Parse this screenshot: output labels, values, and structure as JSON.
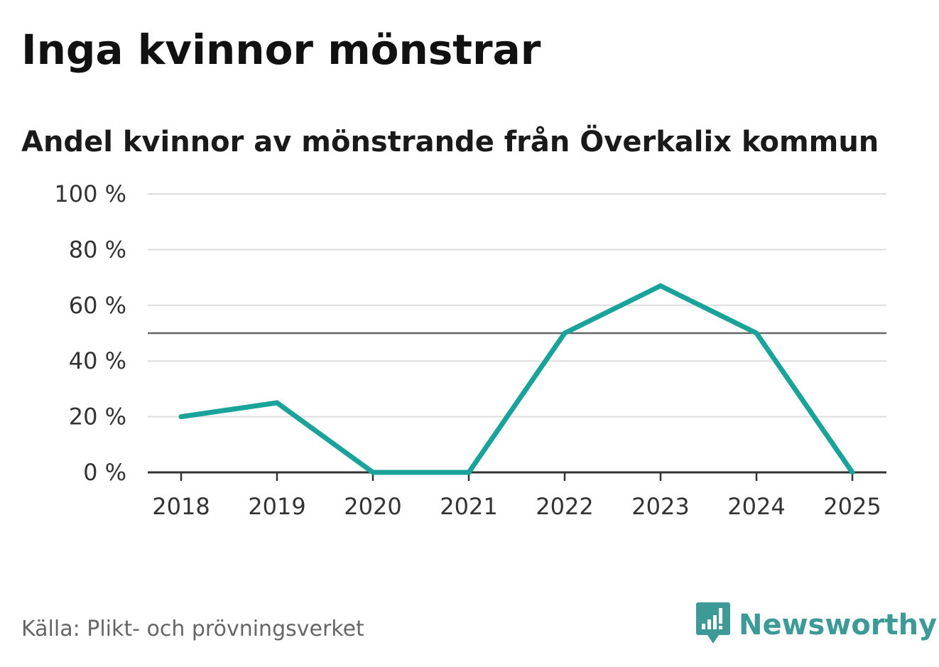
{
  "title": "Inga kvinnor mönstrar",
  "subtitle": "Andel kvinnor av mönstrande från Överkalix kommun",
  "source": "Källa: Plikt- och prövningsverket",
  "brand": {
    "name": "Newsworthy",
    "icon": "bar-chart-speech-icon",
    "color": "#3d9a96"
  },
  "colors": {
    "line": "#1aa39a",
    "grid": "#dddddd",
    "reference": "#666666",
    "axis": "#333333"
  },
  "chart_data": {
    "type": "line",
    "title": "Inga kvinnor mönstrar",
    "subtitle": "Andel kvinnor av mönstrande från Överkalix kommun",
    "xlabel": "",
    "ylabel": "",
    "categories": [
      "2018",
      "2019",
      "2020",
      "2021",
      "2022",
      "2023",
      "2024",
      "2025"
    ],
    "values": [
      20,
      25,
      0,
      0,
      50,
      67,
      50,
      0
    ],
    "ylim": [
      0,
      100
    ],
    "yticks": [
      0,
      20,
      40,
      60,
      80,
      100
    ],
    "ytick_labels": [
      "0 %",
      "20 %",
      "40 %",
      "60 %",
      "80 %",
      "100 %"
    ],
    "reference_line": 50,
    "grid": true,
    "legend": "none"
  }
}
